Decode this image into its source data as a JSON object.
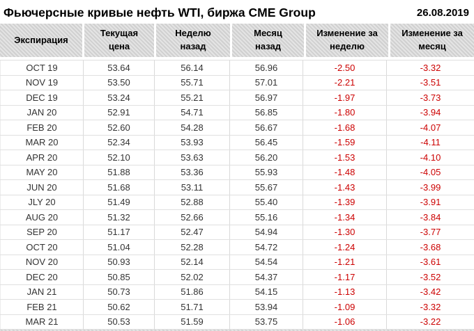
{
  "title": "Фьючерсные кривые нефть WTI, биржа CME Group",
  "date": "26.08.2019",
  "colors": {
    "negative": "#cc0000",
    "header_bg": "#d8d8d8",
    "grid": "#d9d9d9",
    "text": "#333333",
    "title": "#000000"
  },
  "chart_data": {
    "type": "table",
    "title": "Фьючерсные кривые нефть WTI, биржа CME Group",
    "date": "26.08.2019",
    "columns": [
      "Экспирация",
      "Текущая\nцена",
      "Неделю\nназад",
      "Месяц\nназад",
      "Изменение за\nнеделю",
      "Изменение за\nмесяц"
    ],
    "rows": [
      [
        "OCT 19",
        "53.64",
        "56.14",
        "56.96",
        "-2.50",
        "-3.32"
      ],
      [
        "NOV 19",
        "53.50",
        "55.71",
        "57.01",
        "-2.21",
        "-3.51"
      ],
      [
        "DEC 19",
        "53.24",
        "55.21",
        "56.97",
        "-1.97",
        "-3.73"
      ],
      [
        "JAN 20",
        "52.91",
        "54.71",
        "56.85",
        "-1.80",
        "-3.94"
      ],
      [
        "FEB 20",
        "52.60",
        "54.28",
        "56.67",
        "-1.68",
        "-4.07"
      ],
      [
        "MAR 20",
        "52.34",
        "53.93",
        "56.45",
        "-1.59",
        "-4.11"
      ],
      [
        "APR 20",
        "52.10",
        "53.63",
        "56.20",
        "-1.53",
        "-4.10"
      ],
      [
        "MAY 20",
        "51.88",
        "53.36",
        "55.93",
        "-1.48",
        "-4.05"
      ],
      [
        "JUN 20",
        "51.68",
        "53.11",
        "55.67",
        "-1.43",
        "-3.99"
      ],
      [
        "JLY 20",
        "51.49",
        "52.88",
        "55.40",
        "-1.39",
        "-3.91"
      ],
      [
        "AUG 20",
        "51.32",
        "52.66",
        "55.16",
        "-1.34",
        "-3.84"
      ],
      [
        "SEP 20",
        "51.17",
        "52.47",
        "54.94",
        "-1.30",
        "-3.77"
      ],
      [
        "OCT 20",
        "51.04",
        "52.28",
        "54.72",
        "-1.24",
        "-3.68"
      ],
      [
        "NOV 20",
        "50.93",
        "52.14",
        "54.54",
        "-1.21",
        "-3.61"
      ],
      [
        "DEC 20",
        "50.85",
        "52.02",
        "54.37",
        "-1.17",
        "-3.52"
      ],
      [
        "JAN 21",
        "50.73",
        "51.86",
        "54.15",
        "-1.13",
        "-3.42"
      ],
      [
        "FEB 21",
        "50.62",
        "51.71",
        "53.94",
        "-1.09",
        "-3.32"
      ],
      [
        "MAR 21",
        "50.53",
        "51.59",
        "53.75",
        "-1.06",
        "-3.22"
      ]
    ]
  }
}
